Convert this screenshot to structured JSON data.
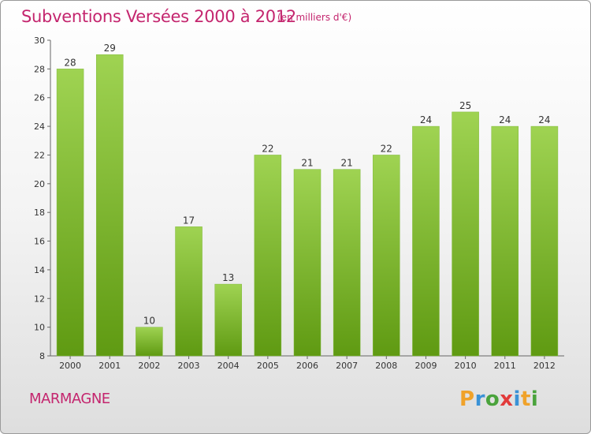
{
  "header": {
    "title": "Subventions Versées 2000 à 2012",
    "subtitle": "(en milliers d'€)"
  },
  "footer": {
    "commune": "MARMAGNE",
    "logo": {
      "letters": [
        "P",
        "r",
        "o",
        "x",
        "i",
        "t",
        "i"
      ],
      "colors": [
        "#f0a22a",
        "#3a92d6",
        "#4aa33c",
        "#e23b3b",
        "#3a92d6",
        "#f0a22a",
        "#4aa33c"
      ]
    }
  },
  "chart_data": {
    "type": "bar",
    "categories": [
      "2000",
      "2001",
      "2002",
      "2003",
      "2004",
      "2005",
      "2006",
      "2007",
      "2008",
      "2009",
      "2010",
      "2011",
      "2012"
    ],
    "values": [
      28,
      29,
      10,
      17,
      13,
      22,
      21,
      21,
      22,
      24,
      25,
      24,
      24
    ],
    "title": "Subventions Versées 2000 à 2012",
    "ylim": [
      8,
      30
    ],
    "yticks": [
      8,
      10,
      12,
      14,
      16,
      18,
      20,
      22,
      24,
      26,
      28,
      30
    ],
    "grid": false,
    "colors": {
      "bar_light": "#9fd352",
      "bar_dark": "#5f9a12",
      "axis": "#666666"
    }
  }
}
